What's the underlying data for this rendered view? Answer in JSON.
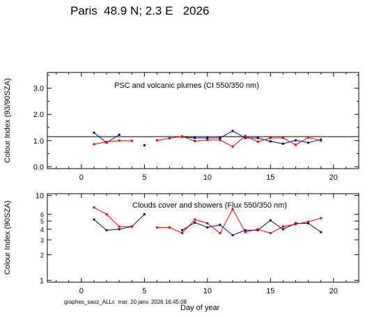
{
  "header": {
    "title": "Paris  48.9 N; 2.3 E   2026"
  },
  "footer": {
    "text": "graphes_saoz_ALLc  mar. 20 janv. 2026 16:45:08"
  },
  "colors": {
    "blue_series": "#00008b",
    "red_series": "#e00000",
    "axes": "#000000"
  },
  "chart_data": [
    {
      "type": "line",
      "annotation": "PSC and volcanic plumes (CI 550/350 nm)",
      "ylabel": "Colour Index (93/90SZA)",
      "xlabel": "",
      "xlim": [
        -2.7,
        22
      ],
      "ylim": [
        -0.07,
        3.6
      ],
      "yscale": "linear",
      "xticks": [
        0,
        5,
        10,
        15,
        20
      ],
      "yticks": [
        0.0,
        1.0,
        2.0,
        3.0
      ],
      "ytick_labels": [
        "0.0",
        "1.0",
        "2.0",
        "3.0"
      ],
      "reference_line": 1.15,
      "series": [
        {
          "color": "blue",
          "points": [
            [
              1,
              1.3
            ],
            [
              2,
              0.92
            ],
            [
              3,
              1.22
            ],
            [
              5,
              0.82
            ],
            [
              8,
              1.14
            ],
            [
              9,
              1.1
            ],
            [
              10,
              1.1
            ],
            [
              11,
              1.1
            ],
            [
              12,
              1.37
            ],
            [
              13,
              1.1
            ],
            [
              14,
              1.1
            ],
            [
              15,
              0.97
            ],
            [
              16,
              0.88
            ],
            [
              17,
              1.01
            ],
            [
              18,
              0.92
            ],
            [
              19,
              1.04
            ]
          ]
        },
        {
          "color": "red",
          "points": [
            [
              1,
              0.86
            ],
            [
              2,
              0.95
            ],
            [
              3,
              1.0
            ],
            [
              4,
              0.99
            ],
            [
              6,
              1.01
            ],
            [
              7,
              1.09
            ],
            [
              8,
              1.16
            ],
            [
              9,
              0.98
            ],
            [
              10,
              1.02
            ],
            [
              11,
              1.02
            ],
            [
              12,
              0.77
            ],
            [
              13,
              1.18
            ],
            [
              14,
              0.96
            ],
            [
              15,
              1.1
            ],
            [
              16,
              1.1
            ],
            [
              17,
              0.84
            ],
            [
              18,
              1.12
            ],
            [
              19,
              1.0
            ]
          ]
        }
      ]
    },
    {
      "type": "line",
      "annotation": "Clouds cover and showers (Flux 550/350 nm)",
      "ylabel": "Colour Index (90SZA)",
      "xlabel": "Day of year",
      "xlim": [
        -2.7,
        22
      ],
      "ylim": [
        0.95,
        10.5
      ],
      "yscale": "log",
      "xticks": [
        0,
        5,
        10,
        15,
        20
      ],
      "yticks": [
        1,
        2,
        3,
        4,
        5,
        6,
        10
      ],
      "ytick_labels": [
        "1",
        "2",
        "3",
        "4",
        "5",
        "6",
        "10"
      ],
      "series": [
        {
          "color": "blue",
          "points": [
            [
              1,
              5.2
            ],
            [
              2,
              3.9
            ],
            [
              3,
              4.0
            ],
            [
              4,
              4.3
            ],
            [
              5,
              6.0
            ],
            [
              8,
              3.9
            ],
            [
              9,
              4.8
            ],
            [
              10,
              4.2
            ],
            [
              11,
              4.5
            ],
            [
              12,
              3.4
            ],
            [
              13,
              3.9
            ],
            [
              14,
              3.9
            ],
            [
              15,
              5.1
            ],
            [
              16,
              4.0
            ],
            [
              17,
              4.7
            ],
            [
              18,
              4.7
            ],
            [
              19,
              3.7
            ]
          ]
        },
        {
          "color": "red",
          "points": [
            [
              1,
              7.2
            ],
            [
              2,
              6.0
            ],
            [
              3,
              4.3
            ],
            [
              4,
              4.3
            ],
            [
              6,
              4.2
            ],
            [
              7,
              4.2
            ],
            [
              8,
              3.6
            ],
            [
              9,
              5.2
            ],
            [
              10,
              4.7
            ],
            [
              11,
              3.6
            ],
            [
              12,
              6.9
            ],
            [
              13,
              3.7
            ],
            [
              14,
              4.0
            ],
            [
              15,
              3.6
            ],
            [
              16,
              4.3
            ],
            [
              17,
              4.6
            ],
            [
              18,
              4.9
            ],
            [
              19,
              5.4
            ]
          ]
        }
      ]
    }
  ]
}
